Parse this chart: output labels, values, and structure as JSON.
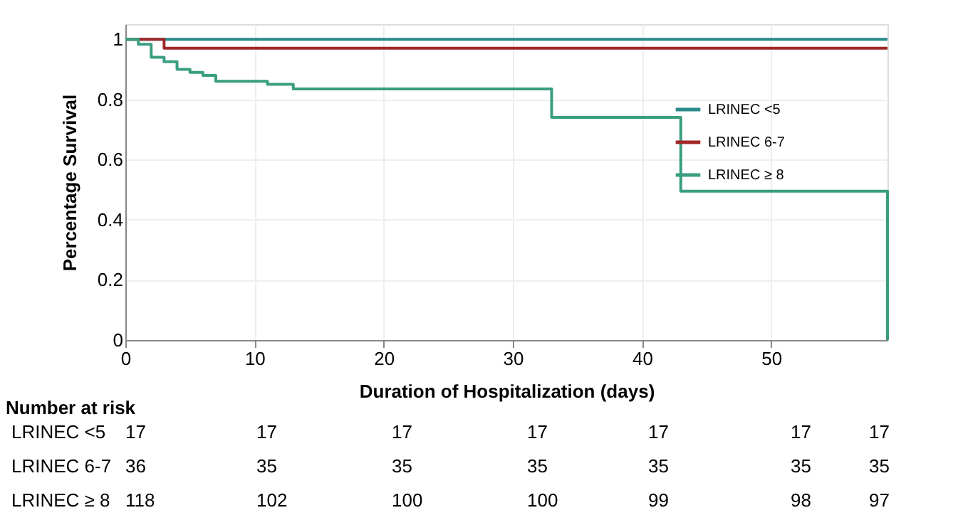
{
  "chart_data": {
    "type": "step",
    "xlabel": "Duration of Hospitalization (days)",
    "ylabel": "Percentage Survival",
    "xlim": [
      0,
      59
    ],
    "xticks": [
      0,
      10,
      20,
      30,
      40,
      50
    ],
    "ylim": [
      0,
      1.05
    ],
    "yticks": [
      0,
      0.2,
      0.4,
      0.6,
      0.8,
      1
    ],
    "grid": true,
    "legend": "right",
    "line_style": "solid",
    "marker": "none",
    "series": [
      {
        "name": "LRINEC <5",
        "color": "#2a8a8c",
        "x": [
          0,
          59
        ],
        "values": [
          1,
          1
        ]
      },
      {
        "name": "LRINEC 6-7",
        "color": "#a02828",
        "x": [
          0,
          3,
          59
        ],
        "values": [
          1,
          0.97,
          0.97
        ]
      },
      {
        "name": "LRINEC ≥ 8",
        "color": "#3a9e80",
        "x": [
          0,
          1,
          2,
          3,
          4,
          5,
          6,
          7,
          11,
          13,
          33,
          43,
          59
        ],
        "values": [
          1,
          0.983,
          0.94,
          0.925,
          0.9,
          0.89,
          0.88,
          0.86,
          0.85,
          0.835,
          0.74,
          0.495,
          0
        ]
      }
    ],
    "annotations": [
      "Number at risk",
      "LRINEC <5",
      "17",
      "17",
      "17",
      "17",
      "17",
      "17",
      "17",
      "LRINEC 6-7",
      "36",
      "35",
      "35",
      "35",
      "35",
      "35",
      "35",
      "LRINEC ≥ 8",
      "118",
      "102",
      "100",
      "100",
      "99",
      "98",
      "97"
    ]
  }
}
